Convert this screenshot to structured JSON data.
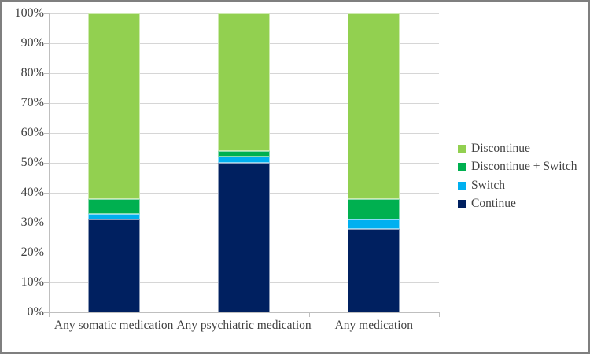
{
  "figure": {
    "background": "#ffffff",
    "border_color": "#7f7f7f",
    "text_color": "#404040",
    "gridline_color": "#d6d6d6",
    "axis_color": "#bfbfbf"
  },
  "chart_data": {
    "type": "bar",
    "stacked": true,
    "percent_scale": true,
    "title": "",
    "xlabel": "",
    "ylabel": "",
    "categories": [
      "Any somatic medication",
      "Any psychiatric medication",
      "Any medication"
    ],
    "series": [
      {
        "name": "Continue",
        "color": "#002060",
        "values": [
          31,
          50,
          28
        ]
      },
      {
        "name": "Switch",
        "color": "#00B0F0",
        "values": [
          2,
          2,
          3
        ]
      },
      {
        "name": "Discontinue + Switch",
        "color": "#00B050",
        "values": [
          5,
          2,
          7
        ]
      },
      {
        "name": "Discontinue",
        "color": "#92D050",
        "values": [
          62,
          46,
          62
        ]
      }
    ],
    "ylim": [
      0,
      100
    ],
    "ytick_step": 10,
    "ytick_labels": [
      "0%",
      "10%",
      "20%",
      "30%",
      "40%",
      "50%",
      "60%",
      "70%",
      "80%",
      "90%",
      "100%"
    ],
    "grid": true,
    "legend_position": "right",
    "legend_order_top_to_bottom": [
      "Discontinue",
      "Discontinue + Switch",
      "Switch",
      "Continue"
    ]
  }
}
